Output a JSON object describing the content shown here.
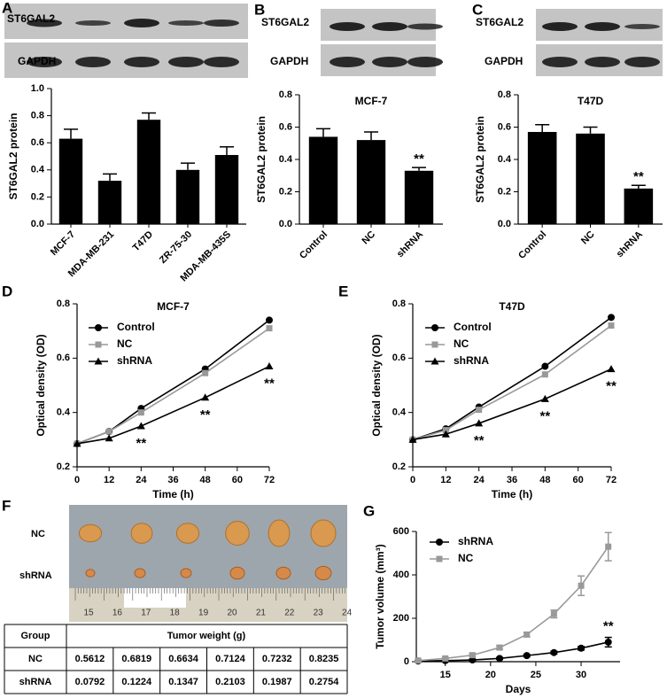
{
  "panel_labels": [
    "A",
    "B",
    "C",
    "D",
    "E",
    "F",
    "G"
  ],
  "blots": [
    {
      "labels": [
        "ST6GAL2",
        "GAPDH"
      ]
    },
    {
      "labels": [
        "ST6GAL2",
        "GAPDH"
      ]
    },
    {
      "labels": [
        "ST6GAL2",
        "GAPDH"
      ]
    }
  ],
  "photo": {
    "row_labels": [
      "NC",
      "shRNA"
    ],
    "ruler": [
      15,
      16,
      17,
      18,
      19,
      20,
      21,
      22,
      23,
      24
    ]
  },
  "table": {
    "header": [
      "Group",
      "Tumor weight (g)"
    ],
    "rows": [
      [
        "NC",
        "0.5612",
        "0.6819",
        "0.6634",
        "0.7124",
        "0.7232",
        "0.8235"
      ],
      [
        "shRNA",
        "0.0792",
        "0.1224",
        "0.1347",
        "0.2103",
        "0.1987",
        "0.2754"
      ]
    ]
  },
  "chart_data": [
    {
      "type": "bar",
      "ylabel": "ST6GAL2 protein",
      "categories": [
        "MCF-7",
        "MDA-MB-231",
        "T47D",
        "ZR-75-30",
        "MDA-MB-435S"
      ],
      "values": [
        0.63,
        0.32,
        0.77,
        0.4,
        0.51
      ],
      "errors": [
        0.07,
        0.05,
        0.05,
        0.05,
        0.06
      ],
      "color": "#000000",
      "ylim": [
        0,
        1
      ],
      "yticks": [
        {
          "value": 0,
          "label": "0.0"
        },
        0.2,
        0.4,
        0.6,
        0.8,
        {
          "value": 1,
          "label": "1.0"
        }
      ]
    },
    {
      "type": "bar",
      "title": "MCF-7",
      "ylabel": "ST6GAL2 protein",
      "categories": [
        "Control",
        "NC",
        "shRNA"
      ],
      "values": [
        0.54,
        0.52,
        0.33
      ],
      "errors": [
        0.05,
        0.05,
        0.02
      ],
      "significance": [
        null,
        null,
        "**"
      ],
      "color": "#000000",
      "ylim": [
        0,
        0.8
      ],
      "yticks": [
        {
          "value": 0,
          "label": "0.0"
        },
        0.2,
        0.4,
        0.6,
        0.8
      ]
    },
    {
      "type": "bar",
      "title": "T47D",
      "ylabel": "ST6GAL2 protein",
      "categories": [
        "Control",
        "NC",
        "shRNA"
      ],
      "values": [
        0.57,
        0.56,
        0.22
      ],
      "errors": [
        0.045,
        0.04,
        0.02
      ],
      "significance": [
        null,
        null,
        "**"
      ],
      "color": "#000000",
      "ylim": [
        0,
        0.8
      ],
      "yticks": [
        {
          "value": 0,
          "label": "0.0"
        },
        0.2,
        0.4,
        0.6,
        0.8
      ]
    },
    {
      "type": "line",
      "title": "MCF-7",
      "xlabel": "Time (h)",
      "ylabel": "Optical density (OD)",
      "x": [
        0,
        12,
        24,
        48,
        72
      ],
      "xlim": [
        0,
        72
      ],
      "xticks": [
        0,
        12,
        24,
        36,
        48,
        60,
        72
      ],
      "ylim": [
        0.2,
        0.8
      ],
      "yticks": [
        0.2,
        0.4,
        0.6,
        0.8
      ],
      "series": [
        {
          "name": "Control",
          "color": "#000000",
          "marker": "circle",
          "values": [
            0.285,
            0.33,
            0.415,
            0.56,
            0.74
          ]
        },
        {
          "name": "NC",
          "color": "#999999",
          "marker": "square",
          "values": [
            0.285,
            0.33,
            0.4,
            0.545,
            0.71
          ]
        },
        {
          "name": "shRNA",
          "color": "#000000",
          "marker": "triangle",
          "values": [
            0.285,
            0.305,
            0.35,
            0.455,
            0.57
          ],
          "significance": [
            null,
            null,
            "**",
            "**",
            "**"
          ]
        }
      ]
    },
    {
      "type": "line",
      "title": "T47D",
      "xlabel": "Time (h)",
      "ylabel": "Optical density (OD)",
      "x": [
        0,
        12,
        24,
        48,
        72
      ],
      "xlim": [
        0,
        72
      ],
      "xticks": [
        0,
        12,
        24,
        36,
        48,
        60,
        72
      ],
      "ylim": [
        0.2,
        0.8
      ],
      "yticks": [
        0.2,
        0.4,
        0.6,
        0.8
      ],
      "series": [
        {
          "name": "Control",
          "color": "#000000",
          "marker": "circle",
          "values": [
            0.3,
            0.34,
            0.42,
            0.57,
            0.75
          ]
        },
        {
          "name": "NC",
          "color": "#999999",
          "marker": "square",
          "values": [
            0.3,
            0.335,
            0.41,
            0.54,
            0.72
          ]
        },
        {
          "name": "shRNA",
          "color": "#000000",
          "marker": "triangle",
          "values": [
            0.3,
            0.32,
            0.36,
            0.45,
            0.56
          ],
          "significance": [
            null,
            null,
            "**",
            "**",
            "**"
          ]
        }
      ]
    },
    {
      "type": "line",
      "xlabel": "Days",
      "ylabel": "Tumor volume (mm³)",
      "x": [
        12,
        15,
        18,
        21,
        24,
        27,
        30,
        33
      ],
      "xlim": [
        11.8,
        34.3
      ],
      "xticks": [
        15,
        20,
        25,
        30
      ],
      "ylim": [
        0,
        600
      ],
      "yticks": [
        0,
        200,
        400,
        600
      ],
      "series": [
        {
          "name": "shRNA",
          "color": "#000000",
          "marker": "circle",
          "values": [
            3,
            5,
            8,
            15,
            28,
            42,
            62,
            90
          ],
          "errors": [
            2,
            2,
            3,
            4,
            5,
            6,
            8,
            22
          ],
          "significance": [
            null,
            null,
            null,
            null,
            null,
            null,
            null,
            "**"
          ]
        },
        {
          "name": "NC",
          "color": "#999999",
          "marker": "square",
          "values": [
            5,
            15,
            30,
            65,
            125,
            220,
            350,
            530
          ],
          "errors": [
            3,
            5,
            6,
            8,
            10,
            18,
            45,
            65
          ]
        }
      ]
    }
  ]
}
